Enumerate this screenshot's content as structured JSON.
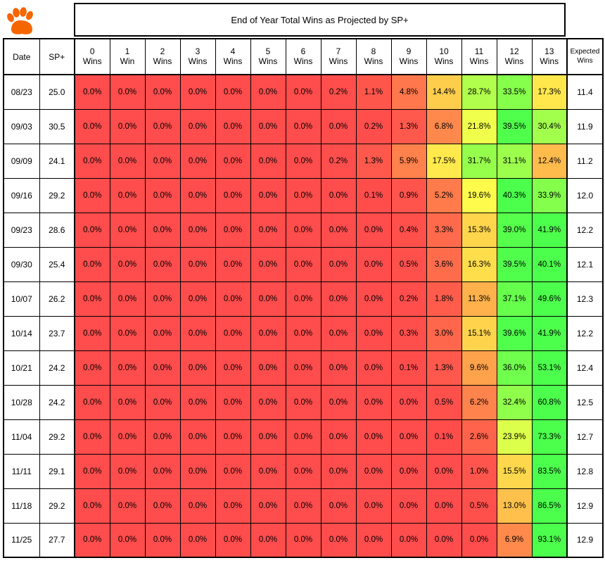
{
  "logo": {
    "icon": "tiger-paw-icon",
    "color": "#F56600"
  },
  "title": "End of Year Total Wins as Projected by SP+",
  "headers": {
    "date": "Date",
    "sp": "SP+",
    "wins": [
      [
        "0",
        "Wins"
      ],
      [
        "1",
        "Win"
      ],
      [
        "2",
        "Wins"
      ],
      [
        "3",
        "Wins"
      ],
      [
        "4",
        "Wins"
      ],
      [
        "5",
        "Wins"
      ],
      [
        "6",
        "Wins"
      ],
      [
        "7",
        "Wins"
      ],
      [
        "8",
        "Wins"
      ],
      [
        "9",
        "Wins"
      ],
      [
        "10",
        "Wins"
      ],
      [
        "11",
        "Wins"
      ],
      [
        "12",
        "Wins"
      ],
      [
        "13",
        "Wins"
      ]
    ],
    "expected": [
      "Expected",
      "Wins"
    ]
  },
  "colors": {
    "low": "#FF4C4C",
    "mid": "#FFFF4C",
    "high": "#4CFF4C",
    "scale_breaks_pct": [
      0,
      20,
      40
    ]
  },
  "chart_data": {
    "type": "heatmap",
    "title": "End of Year Total Wins as Projected by SP+",
    "x": [
      "0 Wins",
      "1 Win",
      "2 Wins",
      "3 Wins",
      "4 Wins",
      "5 Wins",
      "6 Wins",
      "7 Wins",
      "8 Wins",
      "9 Wins",
      "10 Wins",
      "11 Wins",
      "12 Wins",
      "13 Wins"
    ],
    "rows": [
      {
        "date": "08/23",
        "sp": "25.0",
        "probs": [
          "0.0%",
          "0.0%",
          "0.0%",
          "0.0%",
          "0.0%",
          "0.0%",
          "0.0%",
          "0.2%",
          "1.1%",
          "4.8%",
          "14.4%",
          "28.7%",
          "33.5%",
          "17.3%"
        ],
        "expected": "11.4"
      },
      {
        "date": "09/03",
        "sp": "30.5",
        "probs": [
          "0.0%",
          "0.0%",
          "0.0%",
          "0.0%",
          "0.0%",
          "0.0%",
          "0.0%",
          "0.0%",
          "0.2%",
          "1.3%",
          "6.8%",
          "21.8%",
          "39.5%",
          "30.4%"
        ],
        "expected": "11.9"
      },
      {
        "date": "09/09",
        "sp": "24.1",
        "probs": [
          "0.0%",
          "0.0%",
          "0.0%",
          "0.0%",
          "0.0%",
          "0.0%",
          "0.0%",
          "0.2%",
          "1.3%",
          "5.9%",
          "17.5%",
          "31.7%",
          "31.1%",
          "12.4%"
        ],
        "expected": "11.2"
      },
      {
        "date": "09/16",
        "sp": "29.2",
        "probs": [
          "0.0%",
          "0.0%",
          "0.0%",
          "0.0%",
          "0.0%",
          "0.0%",
          "0.0%",
          "0.0%",
          "0.1%",
          "0.9%",
          "5.2%",
          "19.6%",
          "40.3%",
          "33.9%"
        ],
        "expected": "12.0"
      },
      {
        "date": "09/23",
        "sp": "28.6",
        "probs": [
          "0.0%",
          "0.0%",
          "0.0%",
          "0.0%",
          "0.0%",
          "0.0%",
          "0.0%",
          "0.0%",
          "0.0%",
          "0.4%",
          "3.3%",
          "15.3%",
          "39.0%",
          "41.9%"
        ],
        "expected": "12.2"
      },
      {
        "date": "09/30",
        "sp": "25.4",
        "probs": [
          "0.0%",
          "0.0%",
          "0.0%",
          "0.0%",
          "0.0%",
          "0.0%",
          "0.0%",
          "0.0%",
          "0.0%",
          "0.5%",
          "3.6%",
          "16.3%",
          "39.5%",
          "40.1%"
        ],
        "expected": "12.1"
      },
      {
        "date": "10/07",
        "sp": "26.2",
        "probs": [
          "0.0%",
          "0.0%",
          "0.0%",
          "0.0%",
          "0.0%",
          "0.0%",
          "0.0%",
          "0.0%",
          "0.0%",
          "0.2%",
          "1.8%",
          "11.3%",
          "37.1%",
          "49.6%"
        ],
        "expected": "12.3"
      },
      {
        "date": "10/14",
        "sp": "23.7",
        "probs": [
          "0.0%",
          "0.0%",
          "0.0%",
          "0.0%",
          "0.0%",
          "0.0%",
          "0.0%",
          "0.0%",
          "0.0%",
          "0.3%",
          "3.0%",
          "15.1%",
          "39.6%",
          "41.9%"
        ],
        "expected": "12.2"
      },
      {
        "date": "10/21",
        "sp": "24.2",
        "probs": [
          "0.0%",
          "0.0%",
          "0.0%",
          "0.0%",
          "0.0%",
          "0.0%",
          "0.0%",
          "0.0%",
          "0.0%",
          "0.1%",
          "1.3%",
          "9.6%",
          "36.0%",
          "53.1%"
        ],
        "expected": "12.4"
      },
      {
        "date": "10/28",
        "sp": "24.2",
        "probs": [
          "0.0%",
          "0.0%",
          "0.0%",
          "0.0%",
          "0.0%",
          "0.0%",
          "0.0%",
          "0.0%",
          "0.0%",
          "0.0%",
          "0.5%",
          "6.2%",
          "32.4%",
          "60.8%"
        ],
        "expected": "12.5"
      },
      {
        "date": "11/04",
        "sp": "29.2",
        "probs": [
          "0.0%",
          "0.0%",
          "0.0%",
          "0.0%",
          "0.0%",
          "0.0%",
          "0.0%",
          "0.0%",
          "0.0%",
          "0.0%",
          "0.1%",
          "2.6%",
          "23.9%",
          "73.3%"
        ],
        "expected": "12.7"
      },
      {
        "date": "11/11",
        "sp": "29.1",
        "probs": [
          "0.0%",
          "0.0%",
          "0.0%",
          "0.0%",
          "0.0%",
          "0.0%",
          "0.0%",
          "0.0%",
          "0.0%",
          "0.0%",
          "0.0%",
          "1.0%",
          "15.5%",
          "83.5%"
        ],
        "expected": "12.8"
      },
      {
        "date": "11/18",
        "sp": "29.2",
        "probs": [
          "0.0%",
          "0.0%",
          "0.0%",
          "0.0%",
          "0.0%",
          "0.0%",
          "0.0%",
          "0.0%",
          "0.0%",
          "0.0%",
          "0.0%",
          "0.5%",
          "13.0%",
          "86.5%"
        ],
        "expected": "12.9"
      },
      {
        "date": "11/25",
        "sp": "27.7",
        "probs": [
          "0.0%",
          "0.0%",
          "0.0%",
          "0.0%",
          "0.0%",
          "0.0%",
          "0.0%",
          "0.0%",
          "0.0%",
          "0.0%",
          "0.0%",
          "0.0%",
          "6.9%",
          "93.1%"
        ],
        "expected": "12.9"
      }
    ]
  }
}
